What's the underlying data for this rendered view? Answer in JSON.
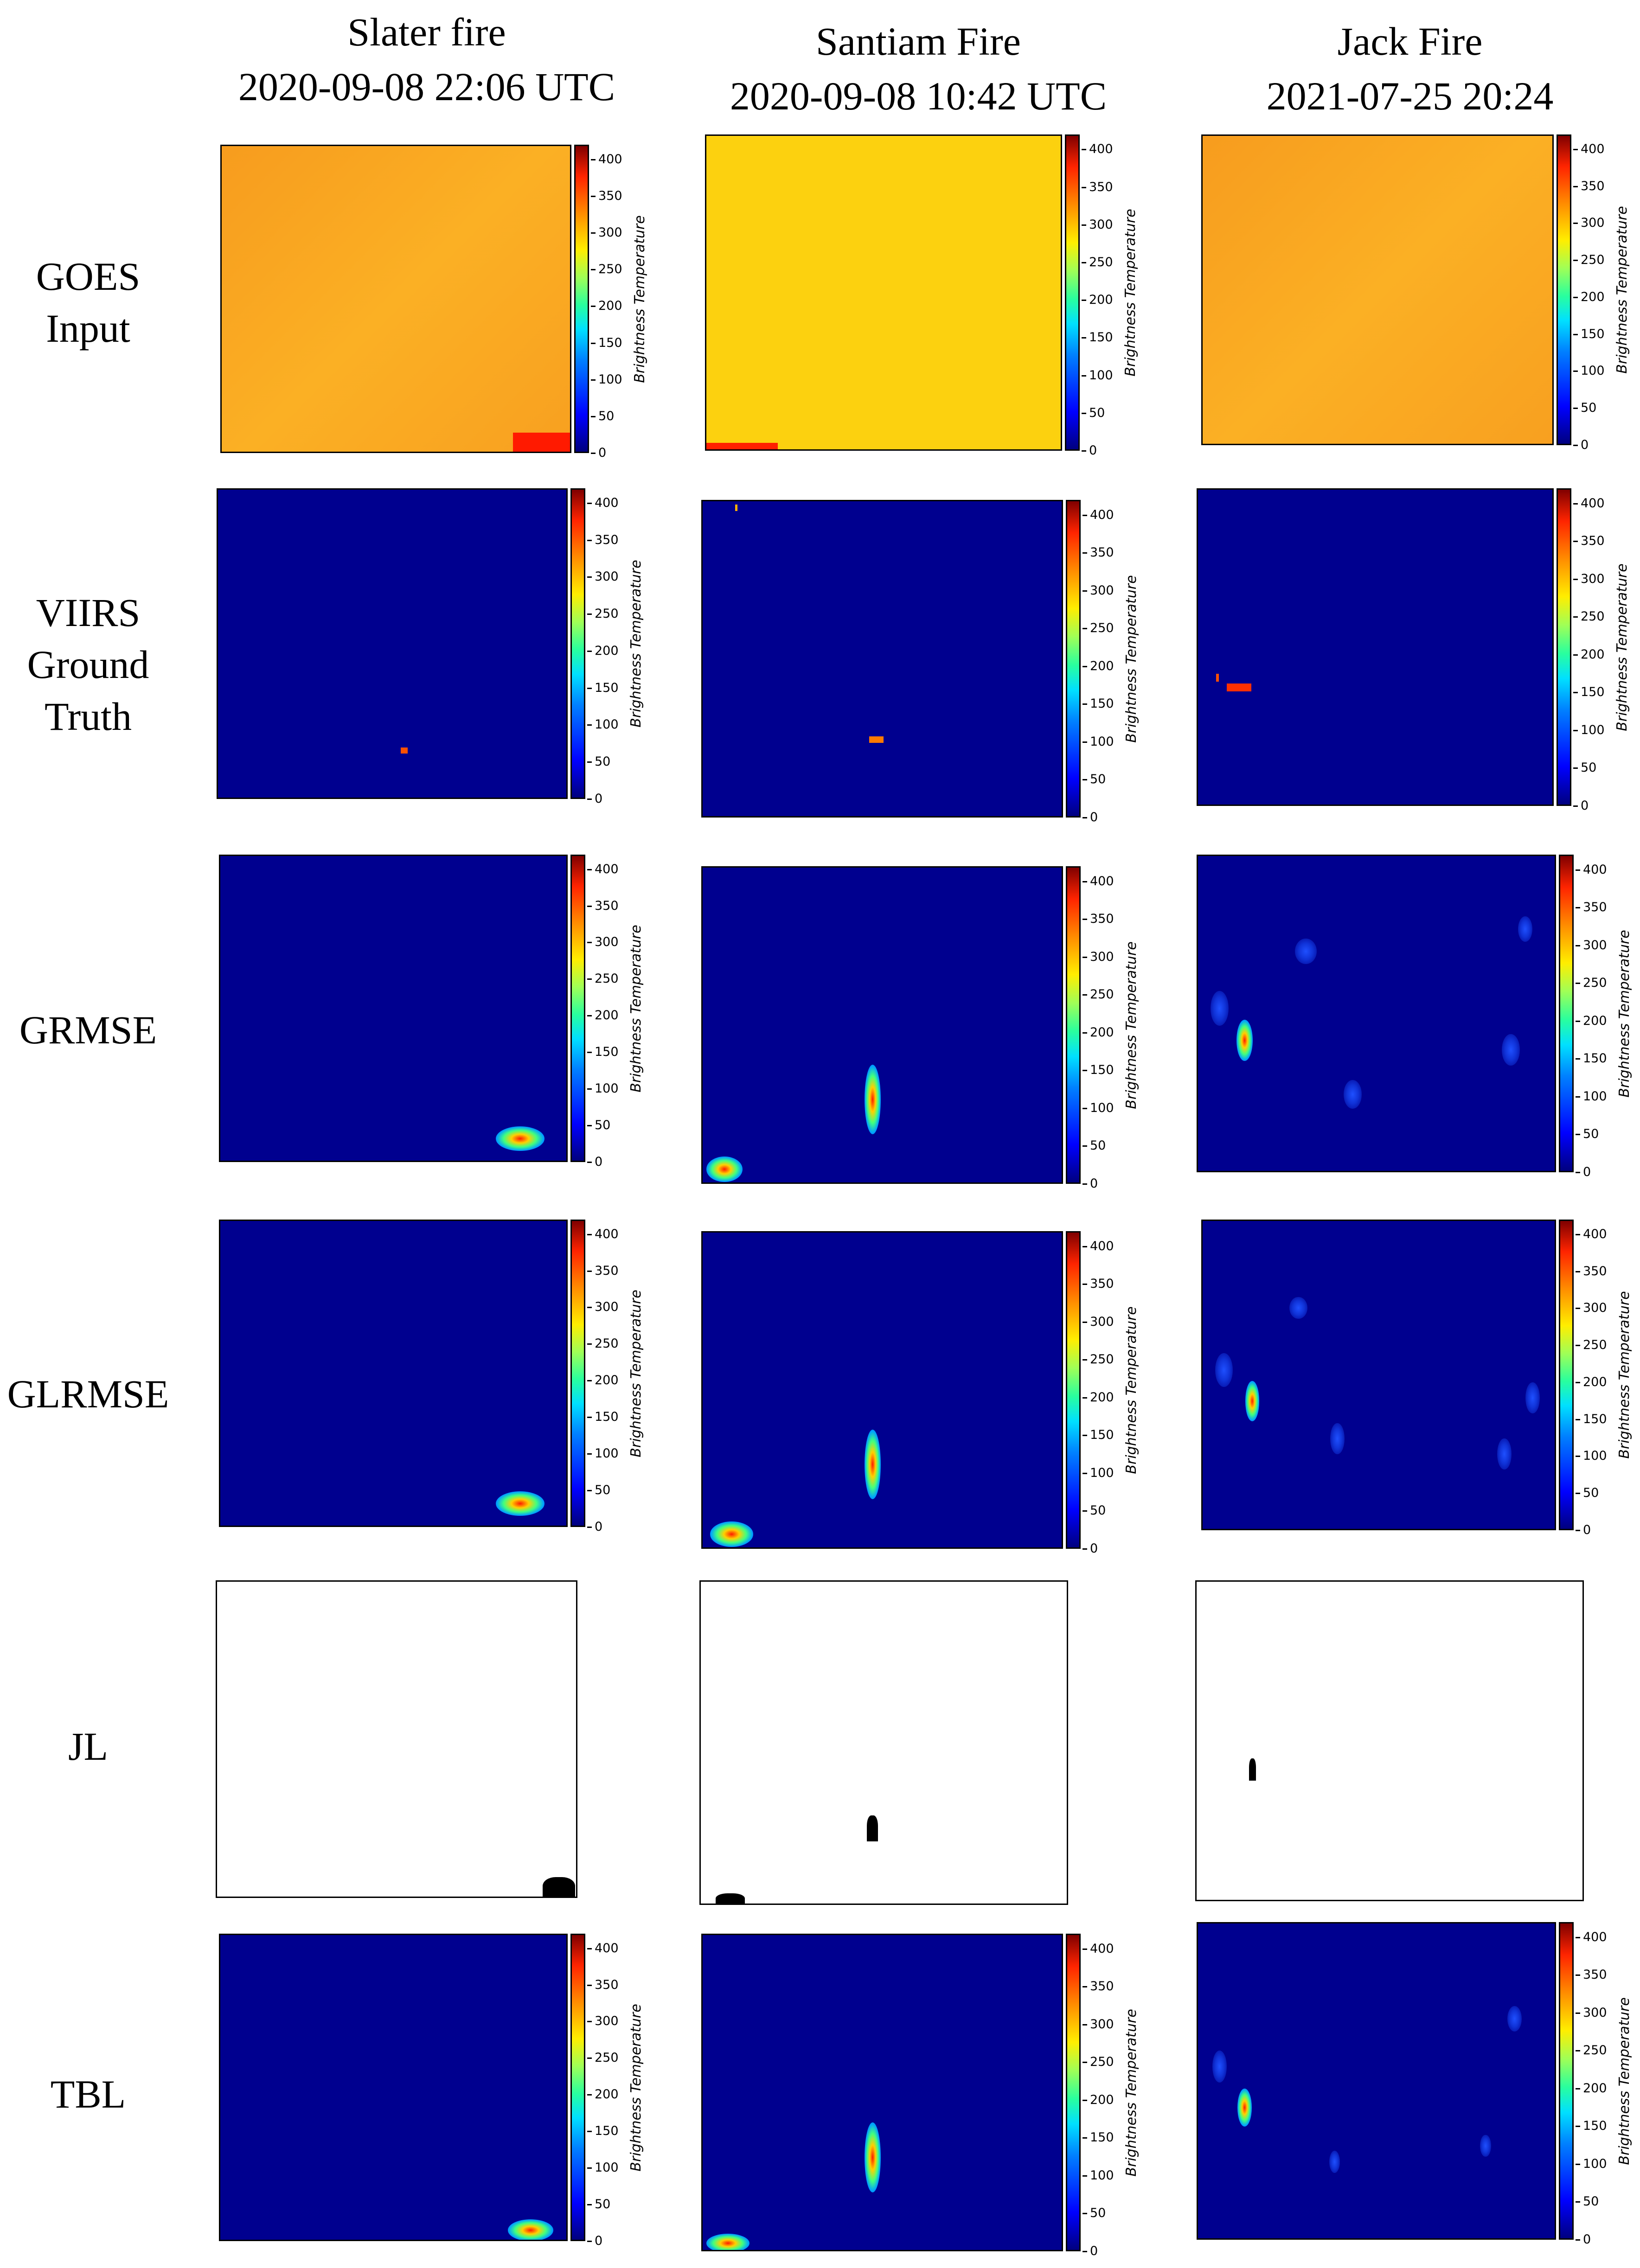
{
  "columns": [
    {
      "name": "Slater fire",
      "time": "2020-09-08 22:06 UTC"
    },
    {
      "name": "Santiam Fire",
      "time": "2020-09-08 10:42 UTC"
    },
    {
      "name": "Jack Fire",
      "time": "2021-07-25 20:24"
    }
  ],
  "rows": {
    "goes": [
      "GOES",
      "Input"
    ],
    "viirs": [
      "VIIRS",
      "Ground",
      "Truth"
    ],
    "grmse": [
      "GRMSE"
    ],
    "glrmse": [
      "GLRMSE"
    ],
    "jl": [
      "JL"
    ],
    "tbl": [
      "TBL"
    ]
  },
  "colorbar": {
    "label": "Brightness Temperature",
    "ticks": [
      "400",
      "350",
      "300",
      "250",
      "200",
      "150",
      "100",
      "50",
      "0"
    ],
    "range": [
      0,
      420
    ],
    "colormap": [
      "#00007f",
      "#0000ff",
      "#00e0ff",
      "#a0ff56",
      "#ffee00",
      "#ff8c00",
      "#ff2400",
      "#800000"
    ]
  },
  "colors": {
    "background_low": "#00008f",
    "goes_fill": "#fbab22",
    "fire_pixel": "#ff4400",
    "mask": "#000000"
  }
}
